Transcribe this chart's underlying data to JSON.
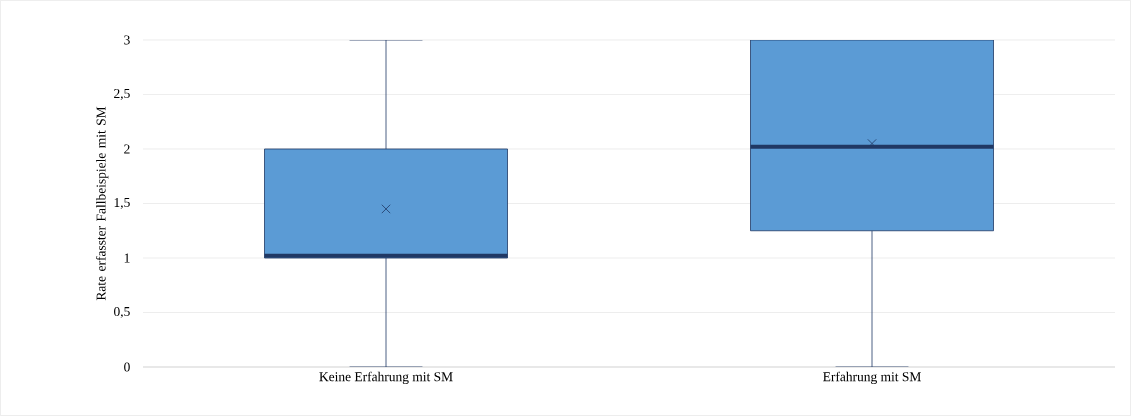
{
  "chart_data": {
    "type": "box",
    "ylabel": "Rate erfasster Fallbeispiele mit SM",
    "categories": [
      "Keine Erfahrung mit SM",
      "Erfahrung mit SM"
    ],
    "boxes": [
      {
        "low": 0,
        "q1": 1,
        "median": 1.02,
        "q3": 2,
        "high": 3,
        "mean": 1.45
      },
      {
        "low": 0,
        "q1": 1.25,
        "median": 2.02,
        "q3": 3,
        "high": 3,
        "mean": 2.05
      }
    ],
    "color": "#5b9bd5",
    "ylim": [
      0,
      3
    ],
    "yticks": [
      0,
      {
        "value": 0.5,
        "label": "0,5"
      },
      1,
      {
        "value": 1.5,
        "label": "1,5"
      },
      2,
      {
        "value": 2.5,
        "label": "2,5"
      },
      3
    ],
    "grid": "y"
  }
}
